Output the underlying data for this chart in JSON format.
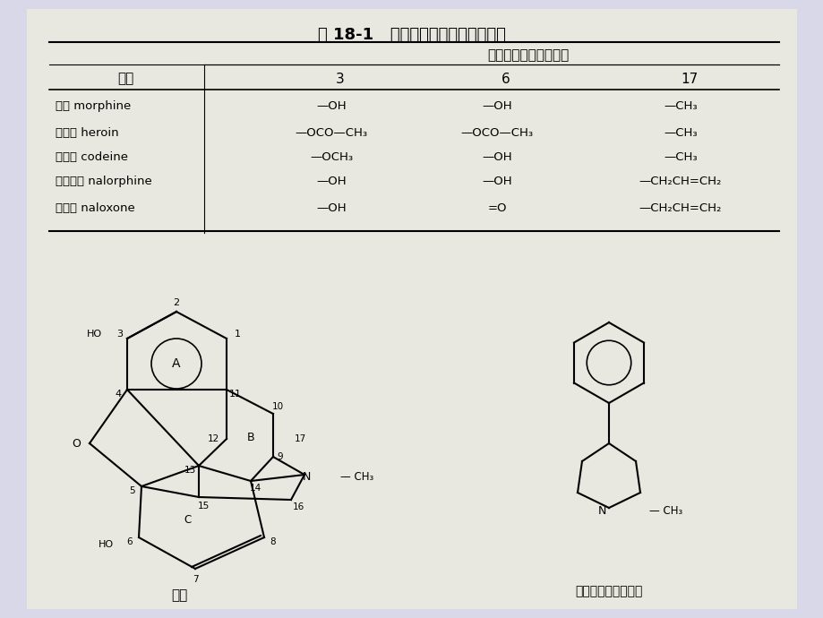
{
  "title": "表 18-1   吗啡及其衍生物的化学结构",
  "col_header_main": "化学基团和取代的位置",
  "col_drug": "药物",
  "col_positions": [
    "3",
    "6",
    "17"
  ],
  "rows": [
    {
      "drug": "吗啡 morphine",
      "pos3": "—OH",
      "pos6": "—OH",
      "pos17": "—CH₃"
    },
    {
      "drug": "海洛因 heroin",
      "pos3": "—OCO—CH₃",
      "pos6": "—OCO—CH₃",
      "pos17": "—CH₃"
    },
    {
      "drug": "可待因 codeine",
      "pos3": "—OCH₃",
      "pos6": "—OH",
      "pos17": "—CH₃"
    },
    {
      "drug": "烯丙吗啡 nalorphine",
      "pos3": "—OH",
      "pos6": "—OH",
      "pos17": "—CH₂CH=CH₂"
    },
    {
      "drug": "纳洛酮 naloxone",
      "pos3": "—OH",
      "pos6": "=O",
      "pos17": "—CH₂CH=CH₂"
    }
  ],
  "morphine_label": "吗啡",
  "piperidine_label": "苯基哌啶类基本结构",
  "bg_color": "#d8d8e8",
  "paper_color": "#e8e8e0",
  "header_color": "#cccccc"
}
